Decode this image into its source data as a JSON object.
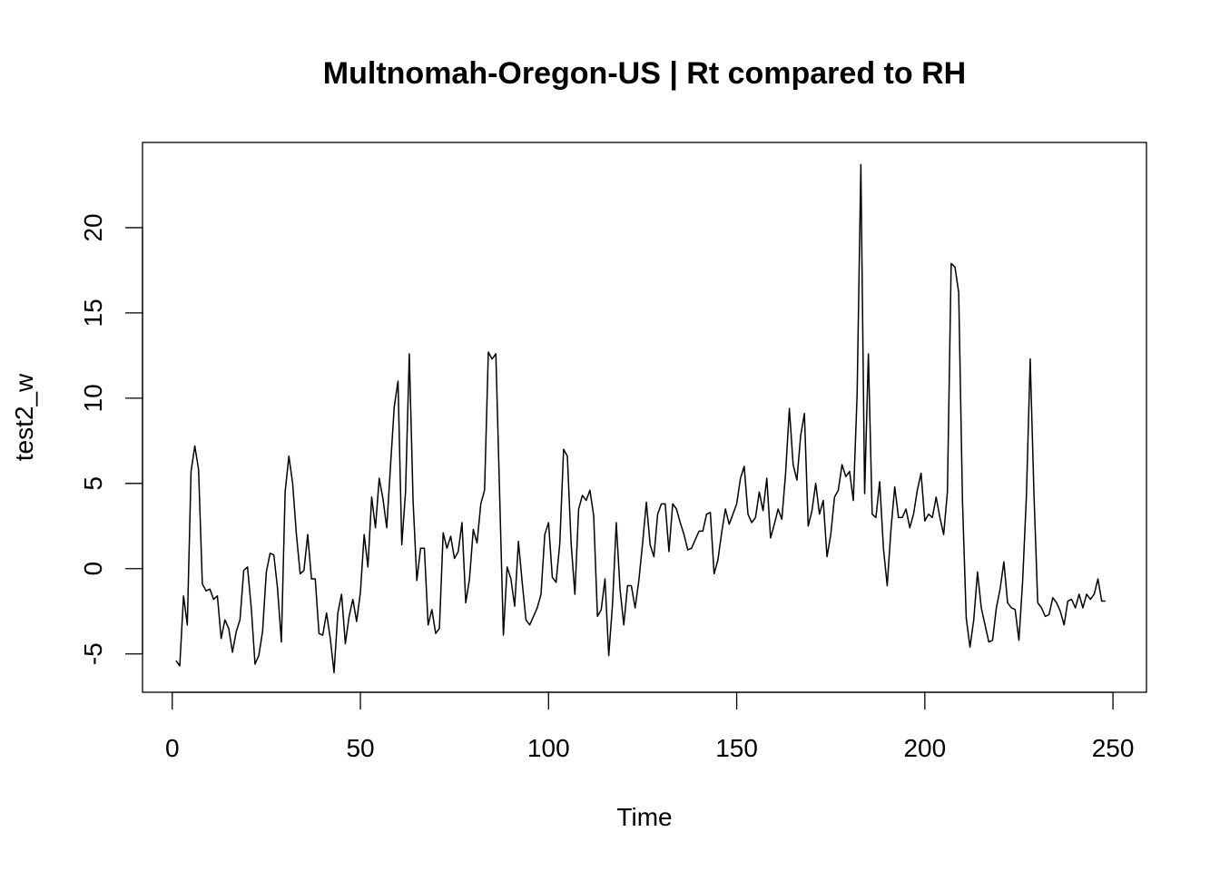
{
  "chart_data": {
    "type": "line",
    "title": "Multnomah-Oregon-US | Rt compared to RH",
    "xlabel": "Time",
    "ylabel": "test2_w",
    "xlim": [
      -7.9,
      258.9
    ],
    "ylim": [
      -7.25,
      25
    ],
    "x_ticks": [
      0,
      50,
      100,
      150,
      200,
      250
    ],
    "y_ticks": [
      -5,
      0,
      5,
      10,
      15,
      20
    ],
    "grid": false,
    "legend": "none",
    "line_color": "#000000",
    "x_start": 1,
    "values": [
      -5.4,
      -5.7,
      -1.6,
      -3.3,
      5.7,
      7.2,
      5.8,
      -0.9,
      -1.3,
      -1.2,
      -1.8,
      -1.6,
      -4.1,
      -3.0,
      -3.5,
      -4.9,
      -3.7,
      -3.0,
      -0.1,
      0.1,
      -2.3,
      -5.6,
      -5.1,
      -3.7,
      -0.2,
      0.9,
      0.8,
      -1.2,
      -4.3,
      4.5,
      6.6,
      5.0,
      2.0,
      -0.3,
      -0.1,
      2.0,
      -0.6,
      -0.6,
      -3.8,
      -3.9,
      -2.6,
      -4.1,
      -6.1,
      -2.6,
      -1.5,
      -4.4,
      -2.8,
      -1.8,
      -3.1,
      -1.4,
      2.0,
      0.1,
      4.2,
      2.4,
      5.3,
      4.1,
      2.4,
      6.0,
      9.5,
      11.0,
      1.4,
      4.5,
      12.6,
      4.0,
      -0.7,
      1.2,
      1.2,
      -3.3,
      -2.4,
      -3.8,
      -3.5,
      2.1,
      1.2,
      1.9,
      0.6,
      1.0,
      2.7,
      -2.0,
      -0.6,
      2.3,
      1.5,
      3.8,
      4.6,
      12.7,
      12.3,
      12.6,
      4.4,
      -3.9,
      0.1,
      -0.6,
      -2.2,
      1.6,
      -0.8,
      -3.0,
      -3.3,
      -2.8,
      -2.3,
      -1.5,
      2.0,
      2.7,
      -0.5,
      -0.8,
      1.5,
      7.0,
      6.6,
      1.5,
      -1.5,
      3.5,
      4.3,
      4.0,
      4.6,
      3.1,
      -2.8,
      -2.4,
      -0.6,
      -5.1,
      -2.1,
      2.7,
      -1.2,
      -3.3,
      -1.0,
      -1.0,
      -2.3,
      -0.7,
      1.5,
      3.9,
      1.4,
      0.7,
      3.2,
      3.8,
      3.8,
      1.0,
      3.8,
      3.5,
      2.7,
      2.0,
      1.1,
      1.2,
      1.7,
      2.2,
      2.2,
      3.2,
      3.3,
      -0.3,
      0.5,
      2.1,
      3.5,
      2.6,
      3.2,
      3.8,
      5.3,
      6.0,
      3.2,
      2.7,
      3.0,
      4.5,
      3.4,
      5.3,
      1.8,
      2.6,
      3.5,
      2.9,
      5.6,
      9.4,
      6.1,
      5.2,
      7.8,
      9.1,
      2.5,
      3.4,
      5.0,
      3.2,
      4.0,
      0.7,
      2.0,
      4.2,
      4.6,
      6.1,
      5.4,
      5.7,
      4.0,
      10.2,
      23.7,
      4.4,
      12.6,
      3.2,
      3.0,
      5.1,
      1.2,
      -1.0,
      2.3,
      4.8,
      3.0,
      3.0,
      3.5,
      2.4,
      3.2,
      4.6,
      5.6,
      2.8,
      3.2,
      3.0,
      4.2,
      3.0,
      2.0,
      4.5,
      17.9,
      17.7,
      16.2,
      4.0,
      -2.9,
      -4.6,
      -3.0,
      -0.2,
      -2.3,
      -3.3,
      -4.3,
      -4.2,
      -2.3,
      -1.2,
      0.4,
      -2.0,
      -2.3,
      -2.4,
      -4.2,
      -0.7,
      4.3,
      12.3,
      4.4,
      -2.0,
      -2.3,
      -2.8,
      -2.7,
      -1.7,
      -2.0,
      -2.5,
      -3.3,
      -1.9,
      -1.8,
      -2.3,
      -1.5,
      -2.3,
      -1.5,
      -1.8,
      -1.5,
      -0.6,
      -1.9,
      -1.9
    ]
  }
}
